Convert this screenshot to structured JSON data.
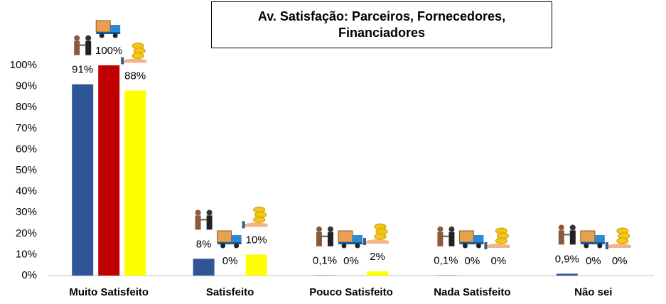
{
  "chart_data": {
    "type": "bar",
    "title": "Av. Satisfação: Parceiros, Fornecedores, Financiadores",
    "categories": [
      "Muito Satisfeito",
      "Satisfeito",
      "Pouco Satisfeito",
      "Nada Satisfeito",
      "Não sei"
    ],
    "series": [
      {
        "color": "#2f5597",
        "values": [
          91,
          8,
          0.1,
          0.1,
          0.9
        ],
        "value_labels": [
          "91%",
          "8%",
          "0,1%",
          "0,1%",
          "0,9%"
        ]
      },
      {
        "color": "#c00000",
        "values": [
          100,
          0,
          0,
          0,
          0
        ],
        "value_labels": [
          "100%",
          "0%",
          "0%",
          "0%",
          "0%"
        ]
      },
      {
        "color": "#ffff00",
        "values": [
          88,
          10,
          2,
          0,
          0
        ],
        "value_labels": [
          "88%",
          "10%",
          "2%",
          "0%",
          "0%"
        ]
      }
    ],
    "ylim": [
      0,
      100
    ],
    "yticks": [
      {
        "value": 0,
        "label": "0%"
      },
      {
        "value": 10,
        "label": "10%"
      },
      {
        "value": 20,
        "label": "20%"
      },
      {
        "value": 30,
        "label": "30%"
      },
      {
        "value": 40,
        "label": "40%"
      },
      {
        "value": 50,
        "label": "50%"
      },
      {
        "value": 60,
        "label": "60%"
      },
      {
        "value": 70,
        "label": "70%"
      },
      {
        "value": 80,
        "label": "80%"
      },
      {
        "value": 90,
        "label": "90%"
      },
      {
        "value": 100,
        "label": "100%"
      }
    ],
    "grid": false
  }
}
